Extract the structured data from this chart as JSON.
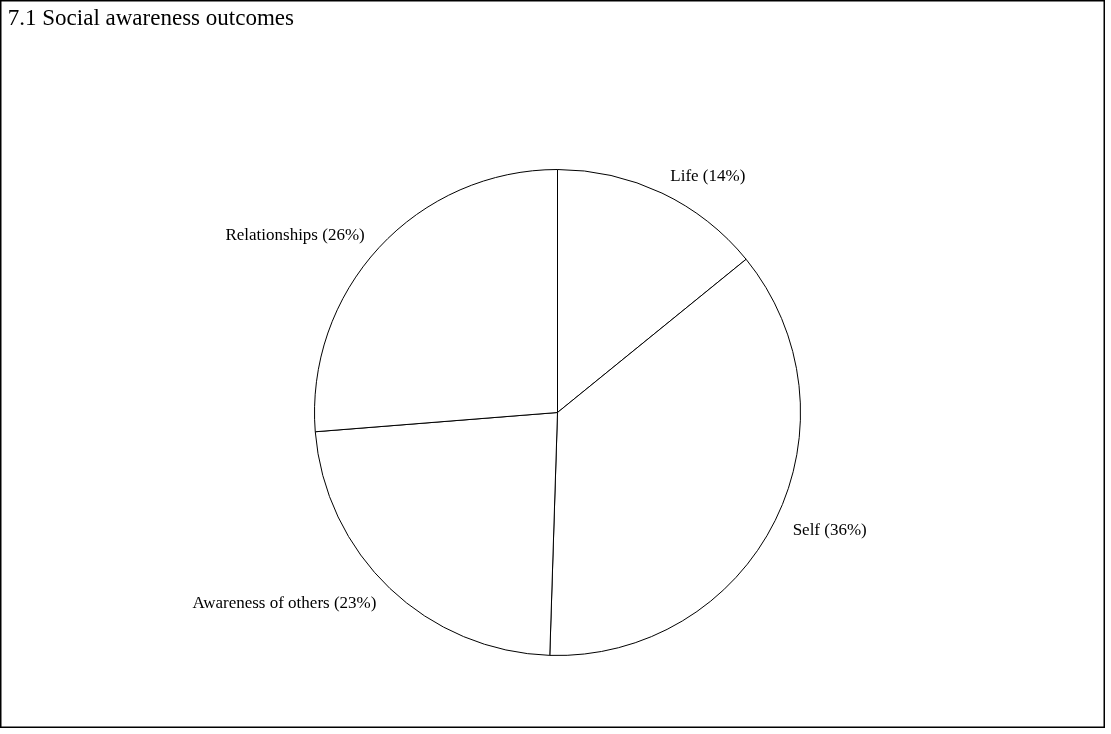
{
  "chart_data": {
    "type": "pie",
    "title": "7.1 Social awareness outcomes",
    "categories": [
      "Life (14%)",
      "Self (36%)",
      "Awareness of others (23%)",
      "Relationships (26%)"
    ],
    "values": [
      14,
      36,
      23,
      26
    ],
    "colors": [
      "#ffffff",
      "#ffffff",
      "#ffffff",
      "#ffffff"
    ]
  }
}
